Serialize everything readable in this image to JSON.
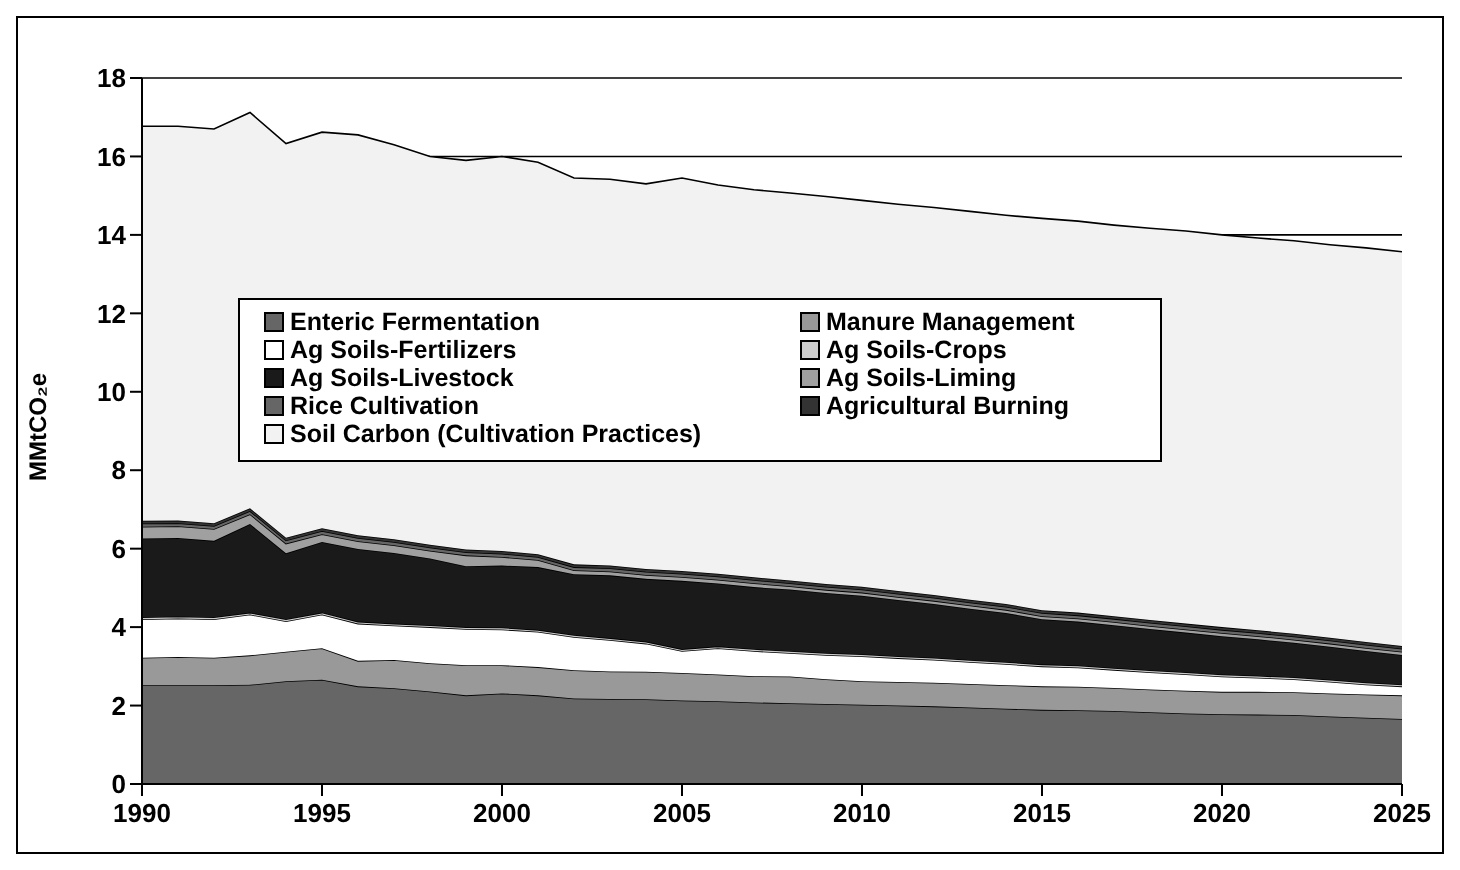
{
  "chart_data": {
    "type": "area",
    "stacked": true,
    "ylabel": "MMtCO₂e",
    "x": [
      1990,
      1991,
      1992,
      1993,
      1994,
      1995,
      1996,
      1997,
      1998,
      1999,
      2000,
      2001,
      2002,
      2003,
      2004,
      2005,
      2006,
      2007,
      2008,
      2009,
      2010,
      2011,
      2012,
      2013,
      2014,
      2015,
      2016,
      2017,
      2018,
      2019,
      2020,
      2021,
      2022,
      2023,
      2024,
      2025
    ],
    "xlim": [
      1990,
      2025
    ],
    "xticks": [
      1990,
      1995,
      2000,
      2005,
      2010,
      2015,
      2020,
      2025
    ],
    "ylim": [
      0,
      18
    ],
    "yticks": [
      0,
      2,
      4,
      6,
      8,
      10,
      12,
      14,
      16,
      18
    ],
    "grid": "y",
    "legend": "top",
    "series": [
      {
        "name": "Enteric Fermentation",
        "color": "#666666",
        "values": [
          2.52,
          2.52,
          2.52,
          2.53,
          2.62,
          2.66,
          2.49,
          2.44,
          2.36,
          2.26,
          2.31,
          2.26,
          2.18,
          2.17,
          2.16,
          2.13,
          2.11,
          2.08,
          2.06,
          2.04,
          2.02,
          2.0,
          1.98,
          1.95,
          1.92,
          1.89,
          1.88,
          1.86,
          1.83,
          1.8,
          1.78,
          1.77,
          1.76,
          1.72,
          1.69,
          1.66
        ]
      },
      {
        "name": "Manure Management",
        "color": "#999999",
        "values": [
          0.7,
          0.72,
          0.7,
          0.75,
          0.75,
          0.8,
          0.65,
          0.72,
          0.72,
          0.77,
          0.72,
          0.72,
          0.72,
          0.7,
          0.7,
          0.7,
          0.68,
          0.67,
          0.68,
          0.63,
          0.6,
          0.6,
          0.6,
          0.6,
          0.6,
          0.6,
          0.6,
          0.59,
          0.58,
          0.58,
          0.57,
          0.58,
          0.58,
          0.59,
          0.59,
          0.6
        ]
      },
      {
        "name": "Ag Soils-Fertilizers",
        "color": "#ffffff",
        "values": [
          0.98,
          0.98,
          0.98,
          1.04,
          0.78,
          0.86,
          0.95,
          0.88,
          0.92,
          0.92,
          0.91,
          0.9,
          0.85,
          0.8,
          0.72,
          0.56,
          0.67,
          0.64,
          0.6,
          0.62,
          0.64,
          0.61,
          0.59,
          0.56,
          0.54,
          0.51,
          0.49,
          0.46,
          0.44,
          0.42,
          0.39,
          0.36,
          0.33,
          0.3,
          0.26,
          0.23
        ]
      },
      {
        "name": "Ag Soils-Crops",
        "color": "#cccccc",
        "values": [
          0.05,
          0.05,
          0.05,
          0.05,
          0.05,
          0.05,
          0.05,
          0.05,
          0.05,
          0.05,
          0.05,
          0.05,
          0.05,
          0.05,
          0.05,
          0.05,
          0.05,
          0.05,
          0.05,
          0.05,
          0.05,
          0.05,
          0.05,
          0.05,
          0.05,
          0.05,
          0.05,
          0.05,
          0.05,
          0.05,
          0.05,
          0.05,
          0.05,
          0.05,
          0.05,
          0.05
        ]
      },
      {
        "name": "Ag Soils-Livestock",
        "color": "#1a1a1a",
        "values": [
          2.01,
          2.0,
          1.95,
          2.26,
          1.68,
          1.8,
          1.85,
          1.8,
          1.7,
          1.55,
          1.58,
          1.6,
          1.55,
          1.6,
          1.6,
          1.74,
          1.6,
          1.58,
          1.57,
          1.53,
          1.49,
          1.43,
          1.37,
          1.31,
          1.25,
          1.15,
          1.12,
          1.09,
          1.05,
          1.01,
          0.98,
          0.93,
          0.88,
          0.84,
          0.8,
          0.75
        ]
      },
      {
        "name": "Ag Soils-Liming",
        "color": "#a0a0a0",
        "values": [
          0.3,
          0.3,
          0.3,
          0.25,
          0.25,
          0.2,
          0.2,
          0.2,
          0.2,
          0.28,
          0.22,
          0.18,
          0.1,
          0.1,
          0.1,
          0.1,
          0.1,
          0.1,
          0.08,
          0.08,
          0.08,
          0.08,
          0.08,
          0.08,
          0.08,
          0.08,
          0.08,
          0.08,
          0.08,
          0.08,
          0.08,
          0.08,
          0.08,
          0.08,
          0.08,
          0.08
        ]
      },
      {
        "name": "Rice Cultivation",
        "color": "#666666",
        "values": [
          0.08,
          0.08,
          0.08,
          0.08,
          0.08,
          0.08,
          0.08,
          0.08,
          0.08,
          0.08,
          0.08,
          0.08,
          0.08,
          0.08,
          0.08,
          0.08,
          0.08,
          0.08,
          0.08,
          0.08,
          0.08,
          0.08,
          0.08,
          0.08,
          0.08,
          0.08,
          0.08,
          0.08,
          0.08,
          0.08,
          0.08,
          0.08,
          0.08,
          0.08,
          0.08,
          0.08
        ]
      },
      {
        "name": "Agricultural Burning",
        "color": "#333333",
        "values": [
          0.07,
          0.07,
          0.07,
          0.07,
          0.07,
          0.07,
          0.07,
          0.07,
          0.07,
          0.07,
          0.07,
          0.07,
          0.07,
          0.07,
          0.07,
          0.07,
          0.07,
          0.07,
          0.07,
          0.07,
          0.07,
          0.07,
          0.07,
          0.07,
          0.07,
          0.07,
          0.07,
          0.07,
          0.07,
          0.07,
          0.07,
          0.07,
          0.07,
          0.07,
          0.07,
          0.07
        ]
      },
      {
        "name": "Soil Carbon (Cultivation Practices)",
        "color": "#f2f2f2",
        "values": [
          10.06,
          10.05,
          10.05,
          10.09,
          10.05,
          10.1,
          10.21,
          10.06,
          9.9,
          9.92,
          10.06,
          9.99,
          9.85,
          9.85,
          9.82,
          10.02,
          9.91,
          9.88,
          9.88,
          9.88,
          9.85,
          9.86,
          9.88,
          9.9,
          9.91,
          9.99,
          9.98,
          9.97,
          9.99,
          10.01,
          10.0,
          10.0,
          10.02,
          10.02,
          10.05,
          10.05
        ]
      }
    ]
  }
}
